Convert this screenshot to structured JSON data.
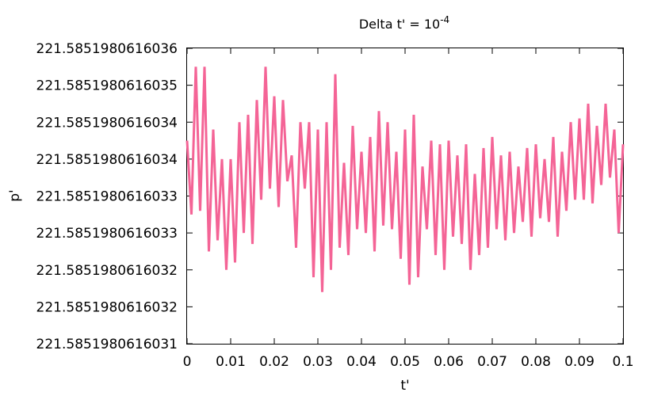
{
  "chart_data": {
    "type": "line",
    "title": "Delta t' = 10",
    "title_superscript": "-4",
    "xlabel": "t'",
    "ylabel": "p'",
    "xlim": [
      0,
      0.1
    ],
    "ylim": [
      0,
      8
    ],
    "x_ticks": [
      {
        "value": 0,
        "label": "0"
      },
      {
        "value": 0.01,
        "label": "0.01"
      },
      {
        "value": 0.02,
        "label": "0.02"
      },
      {
        "value": 0.03,
        "label": "0.03"
      },
      {
        "value": 0.04,
        "label": "0.04"
      },
      {
        "value": 0.05,
        "label": "0.05"
      },
      {
        "value": 0.06,
        "label": "0.06"
      },
      {
        "value": 0.07,
        "label": "0.07"
      },
      {
        "value": 0.08,
        "label": "0.08"
      },
      {
        "value": 0.09,
        "label": "0.09"
      },
      {
        "value": 0.1,
        "label": "0.1"
      }
    ],
    "y_ticks": [
      {
        "value": 0,
        "label": "221.5851980616031"
      },
      {
        "value": 1,
        "label": "221.5851980616032"
      },
      {
        "value": 2,
        "label": "221.5851980616032"
      },
      {
        "value": 3,
        "label": "221.5851980616033"
      },
      {
        "value": 4,
        "label": "221.5851980616033"
      },
      {
        "value": 5,
        "label": "221.5851980616034"
      },
      {
        "value": 6,
        "label": "221.5851980616034"
      },
      {
        "value": 7,
        "label": "221.5851980616035"
      },
      {
        "value": 8,
        "label": "221.5851980616036"
      }
    ],
    "y_units_note": "y values are in tick-step units above the lowest tick (221.5851980616031)",
    "series": [
      {
        "name": "p'",
        "color": "#f06292",
        "stroke": "#f46496",
        "x": [
          0,
          0.001,
          0.002,
          0.003,
          0.004,
          0.005,
          0.006,
          0.007,
          0.008,
          0.009,
          0.01,
          0.011,
          0.012,
          0.013,
          0.014,
          0.015,
          0.016,
          0.017,
          0.018,
          0.019,
          0.02,
          0.021,
          0.022,
          0.023,
          0.024,
          0.025,
          0.026,
          0.027,
          0.028,
          0.029,
          0.03,
          0.031,
          0.032,
          0.033,
          0.034,
          0.035,
          0.036,
          0.037,
          0.038,
          0.039,
          0.04,
          0.041,
          0.042,
          0.043,
          0.044,
          0.045,
          0.046,
          0.047,
          0.048,
          0.049,
          0.05,
          0.051,
          0.052,
          0.053,
          0.054,
          0.055,
          0.056,
          0.057,
          0.058,
          0.059,
          0.06,
          0.061,
          0.062,
          0.063,
          0.064,
          0.065,
          0.066,
          0.067,
          0.068,
          0.069,
          0.07,
          0.071,
          0.072,
          0.073,
          0.074,
          0.075,
          0.076,
          0.077,
          0.078,
          0.079,
          0.08,
          0.081,
          0.082,
          0.083,
          0.084,
          0.085,
          0.086,
          0.087,
          0.088,
          0.089,
          0.09,
          0.091,
          0.092,
          0.093,
          0.094,
          0.095,
          0.096,
          0.097,
          0.098,
          0.099,
          0.1
        ],
        "values": [
          5.5,
          3.5,
          7.5,
          3.6,
          7.5,
          2.5,
          5.8,
          2.8,
          5.0,
          2.0,
          5.0,
          2.2,
          6.0,
          3.0,
          6.2,
          2.7,
          6.6,
          3.9,
          7.5,
          4.2,
          6.7,
          3.7,
          6.6,
          4.4,
          5.1,
          2.6,
          6.0,
          4.2,
          6.0,
          1.8,
          5.8,
          1.4,
          6.0,
          2.0,
          7.3,
          2.6,
          4.9,
          2.4,
          5.9,
          3.1,
          5.2,
          3.0,
          5.6,
          2.5,
          6.3,
          3.2,
          6.0,
          3.1,
          5.2,
          2.3,
          5.8,
          1.6,
          6.2,
          1.8,
          4.8,
          3.1,
          5.5,
          2.4,
          5.4,
          2.0,
          5.5,
          2.9,
          5.1,
          2.7,
          5.4,
          2.0,
          4.6,
          2.4,
          5.3,
          2.6,
          5.6,
          3.1,
          5.1,
          2.8,
          5.2,
          3.0,
          4.8,
          3.3,
          5.3,
          2.9,
          5.4,
          3.4,
          5.0,
          3.3,
          5.6,
          2.9,
          5.2,
          3.6,
          6.0,
          3.9,
          6.1,
          3.9,
          6.5,
          3.8,
          5.9,
          4.3,
          6.5,
          4.5,
          5.8,
          3.0,
          5.4
        ]
      }
    ]
  }
}
